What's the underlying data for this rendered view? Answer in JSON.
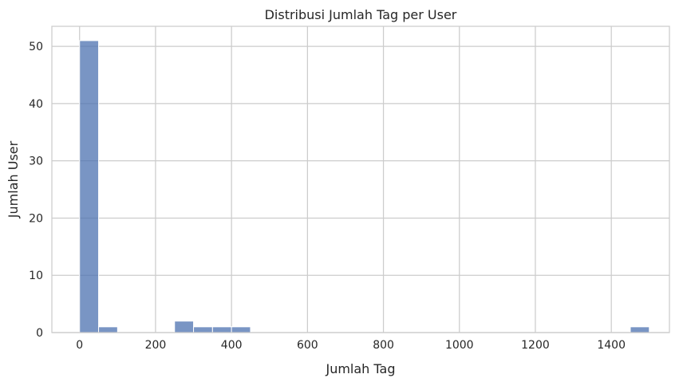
{
  "chart_data": {
    "type": "bar",
    "title": "Distribusi Jumlah Tag per User",
    "xlabel": "Jumlah Tag",
    "ylabel": "Jumlah User",
    "xlim": [
      -73,
      1553
    ],
    "ylim": [
      0,
      53.5
    ],
    "xticks": [
      0,
      200,
      400,
      600,
      800,
      1000,
      1200,
      1400
    ],
    "yticks": [
      0,
      10,
      20,
      30,
      40,
      50
    ],
    "grid": true,
    "colors": {
      "bar": "#4C72B0",
      "grid": "#cccccc",
      "background": "#ffffff"
    },
    "bins": [
      {
        "x0": 0,
        "x1": 50,
        "count": 51
      },
      {
        "x0": 50,
        "x1": 100,
        "count": 1
      },
      {
        "x0": 100,
        "x1": 150,
        "count": 0
      },
      {
        "x0": 150,
        "x1": 200,
        "count": 0
      },
      {
        "x0": 200,
        "x1": 250,
        "count": 0
      },
      {
        "x0": 250,
        "x1": 300,
        "count": 2
      },
      {
        "x0": 300,
        "x1": 350,
        "count": 1
      },
      {
        "x0": 350,
        "x1": 400,
        "count": 1
      },
      {
        "x0": 400,
        "x1": 450,
        "count": 1
      },
      {
        "x0": 450,
        "x1": 500,
        "count": 0
      },
      {
        "x0": 500,
        "x1": 550,
        "count": 0
      },
      {
        "x0": 550,
        "x1": 600,
        "count": 0
      },
      {
        "x0": 600,
        "x1": 650,
        "count": 0
      },
      {
        "x0": 650,
        "x1": 700,
        "count": 0
      },
      {
        "x0": 700,
        "x1": 750,
        "count": 0
      },
      {
        "x0": 750,
        "x1": 800,
        "count": 0
      },
      {
        "x0": 800,
        "x1": 850,
        "count": 0
      },
      {
        "x0": 850,
        "x1": 900,
        "count": 0
      },
      {
        "x0": 900,
        "x1": 950,
        "count": 0
      },
      {
        "x0": 950,
        "x1": 1000,
        "count": 0
      },
      {
        "x0": 1000,
        "x1": 1050,
        "count": 0
      },
      {
        "x0": 1050,
        "x1": 1100,
        "count": 0
      },
      {
        "x0": 1100,
        "x1": 1150,
        "count": 0
      },
      {
        "x0": 1150,
        "x1": 1200,
        "count": 0
      },
      {
        "x0": 1200,
        "x1": 1250,
        "count": 0
      },
      {
        "x0": 1250,
        "x1": 1300,
        "count": 0
      },
      {
        "x0": 1300,
        "x1": 1350,
        "count": 0
      },
      {
        "x0": 1350,
        "x1": 1400,
        "count": 0
      },
      {
        "x0": 1400,
        "x1": 1450,
        "count": 0
      },
      {
        "x0": 1450,
        "x1": 1500,
        "count": 1
      }
    ]
  }
}
